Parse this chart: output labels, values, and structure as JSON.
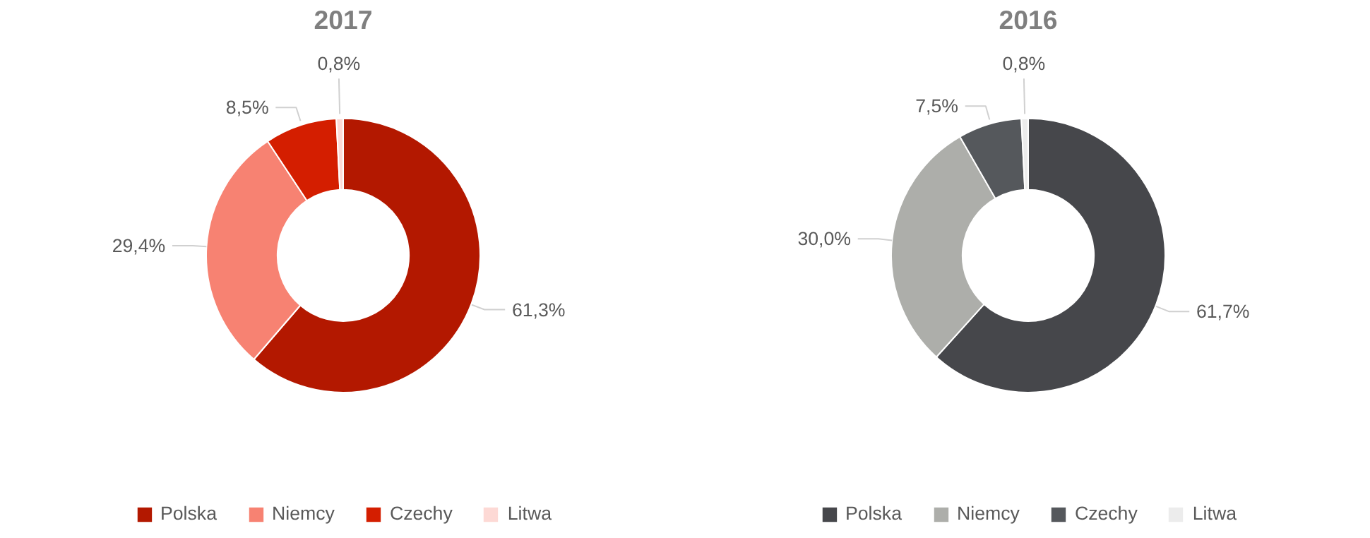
{
  "chart_data": [
    {
      "type": "donut",
      "title": "2017",
      "categories": [
        "Polska",
        "Niemcy",
        "Czechy",
        "Litwa"
      ],
      "values": [
        61.3,
        29.4,
        8.5,
        0.8
      ],
      "colors": [
        "#b31800",
        "#f78272",
        "#d41e00",
        "#fdd9d5"
      ],
      "value_labels": [
        "61,3%",
        "29,4%",
        "8,5%",
        "0,8%"
      ],
      "legend": "bottom"
    },
    {
      "type": "donut",
      "title": "2016",
      "categories": [
        "Polska",
        "Niemcy",
        "Czechy",
        "Litwa"
      ],
      "values": [
        61.7,
        30.0,
        7.5,
        0.8
      ],
      "colors": [
        "#46474b",
        "#adaeaa",
        "#55585c",
        "#ececec"
      ],
      "value_labels": [
        "61,7%",
        "30,0%",
        "7,5%",
        "0,8%"
      ],
      "legend": "bottom"
    }
  ]
}
